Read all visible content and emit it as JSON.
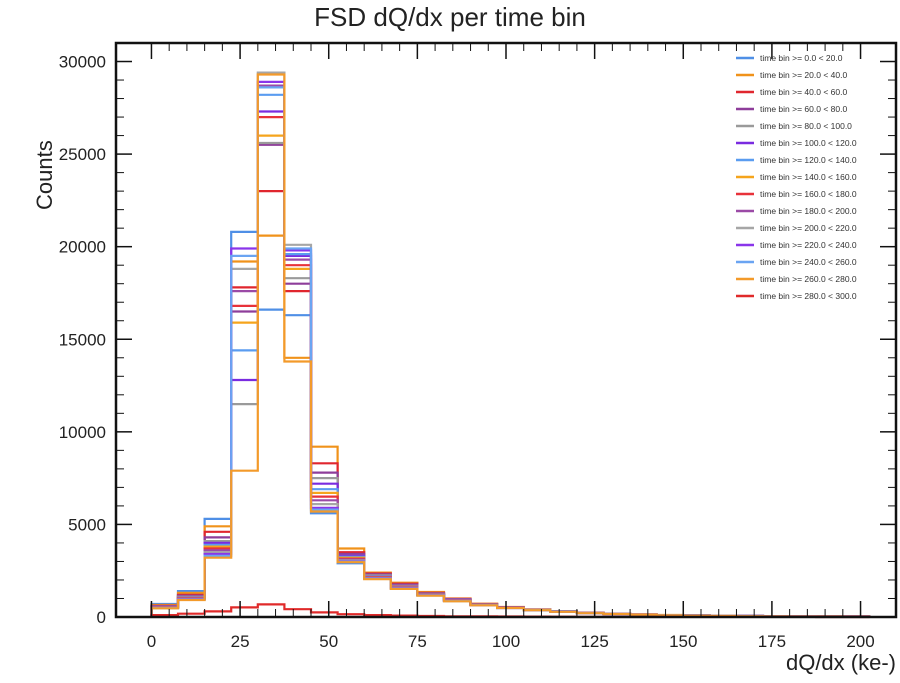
{
  "chart_data": {
    "type": "histogram",
    "title": "FSD dQ/dx per time bin",
    "xlabel": "dQ/dx (ke-)",
    "ylabel": "Counts",
    "xlim": [
      -10,
      210
    ],
    "ylim": [
      0,
      31000
    ],
    "bin_edges": [
      0,
      7.5,
      15,
      22.5,
      30,
      37.5,
      45,
      52.5,
      60,
      67.5,
      75,
      82.5,
      90,
      97.5,
      105,
      112.5,
      120,
      127.5,
      135,
      142.5,
      150,
      157.5,
      165,
      172.5,
      180,
      187.5,
      195,
      202.5
    ],
    "x_ticks": [
      "0",
      "25",
      "50",
      "75",
      "100",
      "125",
      "150",
      "175",
      "200"
    ],
    "y_ticks": [
      "0",
      "5000",
      "10000",
      "15000",
      "20000",
      "25000",
      "30000"
    ],
    "x_tick_values": [
      0,
      25,
      50,
      75,
      100,
      125,
      150,
      175,
      200
    ],
    "y_tick_values": [
      0,
      5000,
      10000,
      15000,
      20000,
      25000,
      30000
    ],
    "legend_position": "top-right",
    "series": [
      {
        "name": "time bin >= 0.0 < 20.0",
        "color": "#4f8fe6",
        "values": [
          700,
          1400,
          5300,
          20800,
          16600,
          16300,
          5600,
          2900,
          2200,
          1600,
          1200,
          900,
          650,
          500,
          380,
          300,
          220,
          170,
          130,
          100,
          80,
          70,
          60,
          50,
          40,
          35,
          30
        ]
      },
      {
        "name": "time bin >= 20.0 < 40.0",
        "color": "#f0921a",
        "values": [
          650,
          1300,
          4900,
          19200,
          20600,
          14000,
          9200,
          3700,
          2400,
          1850,
          1350,
          1000,
          720,
          540,
          410,
          320,
          240,
          180,
          140,
          110,
          90,
          75,
          60,
          50,
          40,
          35,
          30
        ]
      },
      {
        "name": "time bin >= 40.0 < 60.0",
        "color": "#e0262e",
        "values": [
          600,
          1200,
          4600,
          17800,
          23000,
          17600,
          8300,
          3500,
          2350,
          1800,
          1300,
          980,
          700,
          530,
          400,
          310,
          230,
          175,
          135,
          105,
          85,
          70,
          58,
          48,
          38,
          33,
          28
        ]
      },
      {
        "name": "time bin >= 60.0 < 80.0",
        "color": "#8e3d9a",
        "values": [
          580,
          1150,
          4300,
          16500,
          25500,
          18000,
          7800,
          3400,
          2300,
          1750,
          1280,
          960,
          690,
          520,
          395,
          305,
          225,
          172,
          133,
          103,
          83,
          68,
          56,
          46,
          37,
          32,
          27
        ]
      },
      {
        "name": "time bin >= 80.0 < 100.0",
        "color": "#9a9a9a",
        "values": [
          560,
          1100,
          4100,
          11500,
          25600,
          18300,
          7500,
          3300,
          2250,
          1700,
          1250,
          940,
          680,
          510,
          390,
          300,
          222,
          170,
          131,
          101,
          81,
          66,
          54,
          45,
          36,
          31,
          26
        ]
      },
      {
        "name": "time bin >= 100.0 < 120.0",
        "color": "#7a2be0",
        "values": [
          550,
          1080,
          4000,
          12800,
          27300,
          19500,
          7200,
          3300,
          2200,
          1680,
          1230,
          930,
          670,
          505,
          385,
          298,
          220,
          168,
          130,
          100,
          80,
          65,
          53,
          44,
          35,
          30,
          25
        ]
      },
      {
        "name": "time bin >= 120.0 < 140.0",
        "color": "#5a9cf0",
        "values": [
          540,
          1060,
          3900,
          14400,
          28200,
          19600,
          6900,
          3250,
          2180,
          1660,
          1220,
          920,
          665,
          500,
          382,
          296,
          218,
          167,
          129,
          99,
          79,
          64,
          52,
          43,
          34,
          29,
          24
        ]
      },
      {
        "name": "time bin >= 140.0 < 160.0",
        "color": "#f5a41c",
        "values": [
          530,
          1040,
          3800,
          15900,
          26000,
          18800,
          6700,
          3200,
          2160,
          1640,
          1210,
          910,
          660,
          498,
          380,
          294,
          216,
          166,
          128,
          98,
          78,
          63,
          51,
          42,
          33,
          28,
          23
        ]
      },
      {
        "name": "time bin >= 160.0 < 180.0",
        "color": "#e8323a",
        "values": [
          520,
          1020,
          3700,
          16800,
          27000,
          19000,
          6500,
          3150,
          2140,
          1620,
          1200,
          900,
          655,
          495,
          378,
          292,
          214,
          165,
          127,
          97,
          77,
          62,
          50,
          41,
          32,
          27,
          22
        ]
      },
      {
        "name": "time bin >= 180.0 < 200.0",
        "color": "#9b4aa6",
        "values": [
          510,
          1000,
          3600,
          17600,
          28700,
          19300,
          6300,
          3100,
          2120,
          1600,
          1190,
          890,
          650,
          492,
          376,
          290,
          212,
          164,
          126,
          96,
          76,
          61,
          49,
          40,
          31,
          26,
          21
        ]
      },
      {
        "name": "time bin >= 200.0 < 220.0",
        "color": "#a6a6a6",
        "values": [
          500,
          980,
          3500,
          18800,
          29400,
          20100,
          6100,
          3050,
          2100,
          1580,
          1180,
          880,
          645,
          490,
          374,
          288,
          210,
          163,
          125,
          95,
          75,
          60,
          48,
          39,
          30,
          25,
          20
        ]
      },
      {
        "name": "time bin >= 220.0 < 240.0",
        "color": "#8a35ea",
        "values": [
          490,
          960,
          3400,
          19900,
          28900,
          19800,
          5900,
          3000,
          2080,
          1560,
          1170,
          870,
          640,
          488,
          372,
          286,
          208,
          162,
          124,
          94,
          74,
          59,
          47,
          38,
          29,
          24,
          19
        ]
      },
      {
        "name": "time bin >= 240.0 < 260.0",
        "color": "#6aa4f2",
        "values": [
          480,
          940,
          3300,
          19500,
          28600,
          19900,
          5800,
          2980,
          2060,
          1540,
          1160,
          860,
          635,
          486,
          370,
          284,
          206,
          161,
          123,
          93,
          73,
          58,
          46,
          37,
          28,
          23,
          18
        ]
      },
      {
        "name": "time bin >= 260.0 < 280.0",
        "color": "#f39a2a",
        "values": [
          470,
          920,
          3200,
          7900,
          29300,
          13800,
          5700,
          2960,
          2040,
          1520,
          1150,
          850,
          630,
          484,
          368,
          282,
          204,
          160,
          122,
          92,
          72,
          57,
          45,
          36,
          27,
          22,
          17
        ]
      },
      {
        "name": "time bin >= 280.0 < 300.0",
        "color": "#e02a2a",
        "values": [
          100,
          180,
          300,
          520,
          680,
          420,
          250,
          150,
          100,
          75,
          55,
          40,
          30,
          25,
          20,
          16,
          12,
          10,
          8,
          7,
          6,
          5,
          4,
          3,
          3,
          2,
          2
        ]
      }
    ]
  }
}
